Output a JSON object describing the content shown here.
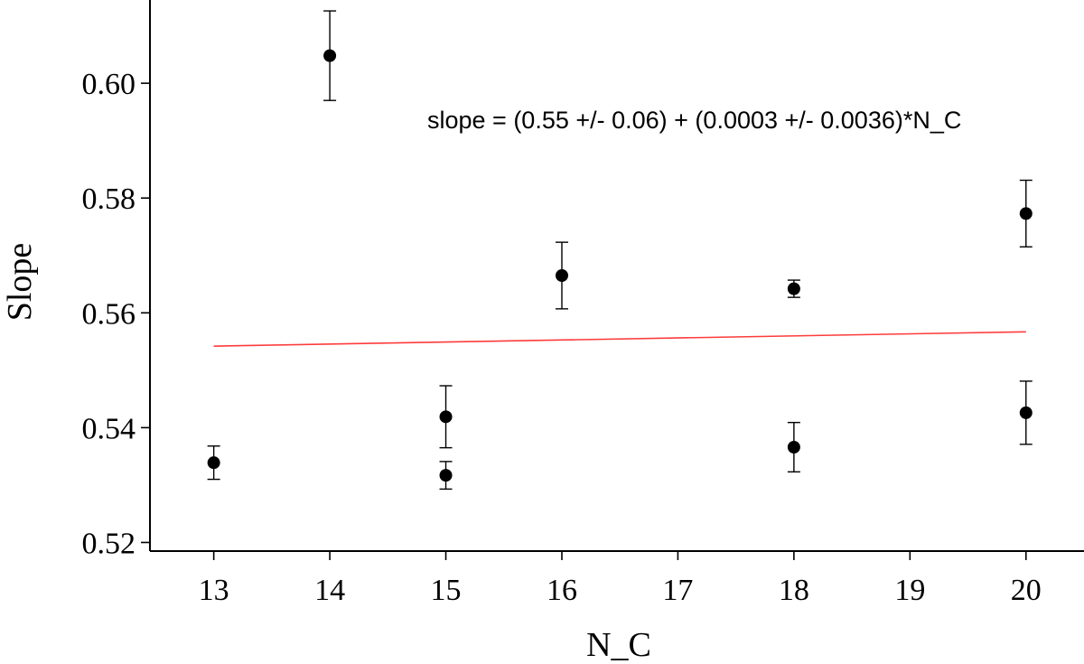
{
  "chart_data": {
    "type": "scatter",
    "xlabel": "N_C",
    "ylabel": "Slope",
    "xlim": [
      12.45,
      20.5
    ],
    "ylim": [
      0.5185,
      0.6145
    ],
    "xticks": [
      13,
      14,
      15,
      16,
      17,
      18,
      19,
      20
    ],
    "yticks": [
      0.52,
      0.54,
      0.56,
      0.58,
      0.6
    ],
    "ytick_labels": [
      "0.52",
      "0.54",
      "0.56",
      "0.58",
      "0.60"
    ],
    "xtick_labels": [
      "13",
      "14",
      "15",
      "16",
      "17",
      "18",
      "19",
      "20"
    ],
    "grid": false,
    "points": [
      {
        "x": 13,
        "y": 0.5339,
        "err": 0.0029
      },
      {
        "x": 14,
        "y": 0.6048,
        "err": 0.0078
      },
      {
        "x": 15,
        "y": 0.5419,
        "err": 0.0054
      },
      {
        "x": 15,
        "y": 0.5317,
        "err": 0.0024
      },
      {
        "x": 16,
        "y": 0.5665,
        "err": 0.0058
      },
      {
        "x": 18,
        "y": 0.5642,
        "err": 0.0015
      },
      {
        "x": 18,
        "y": 0.5366,
        "err": 0.0043
      },
      {
        "x": 20,
        "y": 0.5773,
        "err": 0.0058
      },
      {
        "x": 20,
        "y": 0.5426,
        "err": 0.0055
      }
    ],
    "fit_line": {
      "x": [
        13,
        20
      ],
      "y": [
        0.5542,
        0.5567
      ],
      "color": "#ff3b3b"
    },
    "annotation": "slope = (0.55 +/- 0.06) + (0.0003 +/- 0.0036)*N_C"
  }
}
